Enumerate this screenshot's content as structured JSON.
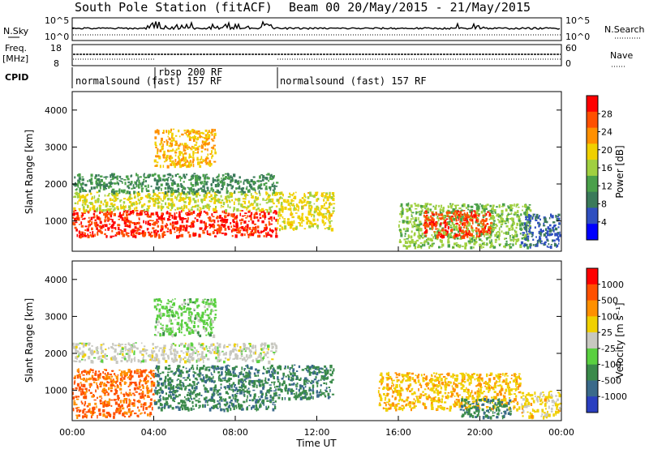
{
  "header": {
    "station": "South Pole Station (fitACF)",
    "beam_and_dates": "Beam 00  20/May/2015 - 21/May/2015"
  },
  "top_panels": {
    "nsky": {
      "label": "N.Sky",
      "top_tick": "10^5",
      "bottom_tick": "10^0"
    },
    "nsearch": {
      "label": "N.Search",
      "top_tick": "10^5",
      "bottom_tick": "10^0"
    },
    "freq": {
      "label_line1": "Freq.",
      "label_line2": "[MHz]",
      "top_tick": "18",
      "bottom_tick": "8"
    },
    "nave": {
      "label": "Nave",
      "top_tick": "60",
      "bottom_tick": "0"
    },
    "cpid": {
      "label": "CPID"
    },
    "modes": [
      {
        "text": "normalsound (fast) 157 RF",
        "start_h": 0
      },
      {
        "text": "rbsp 200 RF",
        "start_h": 4.0
      },
      {
        "text": "normalsound (fast) 157 RF",
        "start_h": 10.0
      }
    ]
  },
  "x_axis": {
    "title": "Time UT",
    "ticks": [
      "00:00",
      "04:00",
      "08:00",
      "12:00",
      "16:00",
      "20:00",
      "00:00"
    ]
  },
  "power_colorbar": {
    "label": "Power [dB]",
    "ticks": [
      "28",
      "24",
      "20",
      "16",
      "12",
      "8",
      "4"
    ]
  },
  "velocity_colorbar": {
    "label": "Velocity [m s⁻¹]",
    "ticks": [
      "1000",
      "500",
      "100",
      "25",
      "-25",
      "-100",
      "-500",
      "-1000"
    ]
  },
  "colors": {
    "power": [
      "#0000ff",
      "#2f4fc0",
      "#3a7a5a",
      "#4aa04a",
      "#a0d040",
      "#f0d000",
      "#ff9000",
      "#ff5000",
      "#ff0000"
    ],
    "velocity": [
      "#2a3fc0",
      "#3a6a8a",
      "#3a8a4a",
      "#5ad040",
      "#c8c8c0",
      "#f0d000",
      "#ff9000",
      "#ff5000",
      "#ff0000"
    ]
  },
  "chart_data": [
    {
      "type": "heatmap",
      "panel": "power",
      "ylabel": "Slant Range [km]",
      "xlabel": "",
      "ylim": [
        180,
        4500
      ],
      "xlim_hours": [
        0,
        24
      ],
      "yticks": [
        1000,
        2000,
        3000,
        4000
      ],
      "cbar_range": [
        0,
        30
      ],
      "regions": [
        {
          "h0": 0.0,
          "h1": 10.0,
          "r0": 600,
          "r1": 1300,
          "v": 27
        },
        {
          "h0": 0.0,
          "h1": 10.0,
          "r0": 1300,
          "r1": 1800,
          "v": 17
        },
        {
          "h0": 0.0,
          "h1": 10.0,
          "r0": 1800,
          "r1": 2300,
          "v": 10
        },
        {
          "h0": 4.0,
          "h1": 7.0,
          "r0": 2500,
          "r1": 3500,
          "v": 20
        },
        {
          "h0": 10.0,
          "h1": 12.8,
          "r0": 800,
          "r1": 1800,
          "v": 18
        },
        {
          "h0": 16.0,
          "h1": 22.5,
          "r0": 300,
          "r1": 1500,
          "v": 14
        },
        {
          "h0": 17.2,
          "h1": 20.5,
          "r0": 600,
          "r1": 1300,
          "v": 26
        },
        {
          "h0": 22.0,
          "h1": 23.9,
          "r0": 300,
          "r1": 1200,
          "v": 6
        }
      ]
    },
    {
      "type": "heatmap",
      "panel": "velocity",
      "ylabel": "Slant Range [km]",
      "xlabel": "Time UT",
      "ylim": [
        180,
        4500
      ],
      "xlim_hours": [
        0,
        24
      ],
      "yticks": [
        1000,
        2000,
        3000,
        4000
      ],
      "cbar_range": [
        -1000,
        1000
      ],
      "regions": [
        {
          "h0": 0.0,
          "h1": 10.0,
          "r0": 1800,
          "r1": 2300,
          "v": 0
        },
        {
          "h0": 0.0,
          "h1": 4.0,
          "r0": 300,
          "r1": 1600,
          "v": 600
        },
        {
          "h0": 4.0,
          "h1": 10.0,
          "r0": 500,
          "r1": 1700,
          "v": -500
        },
        {
          "h0": 10.0,
          "h1": 12.8,
          "r0": 800,
          "r1": 1700,
          "v": -500
        },
        {
          "h0": 4.0,
          "h1": 7.0,
          "r0": 2500,
          "r1": 3500,
          "v": -200
        },
        {
          "h0": 15.0,
          "h1": 22.0,
          "r0": 500,
          "r1": 1500,
          "v": 300
        },
        {
          "h0": 19.0,
          "h1": 21.5,
          "r0": 300,
          "r1": 800,
          "v": -500
        },
        {
          "h0": 22.0,
          "h1": 23.9,
          "r0": 300,
          "r1": 1000,
          "v": 200
        }
      ]
    }
  ]
}
